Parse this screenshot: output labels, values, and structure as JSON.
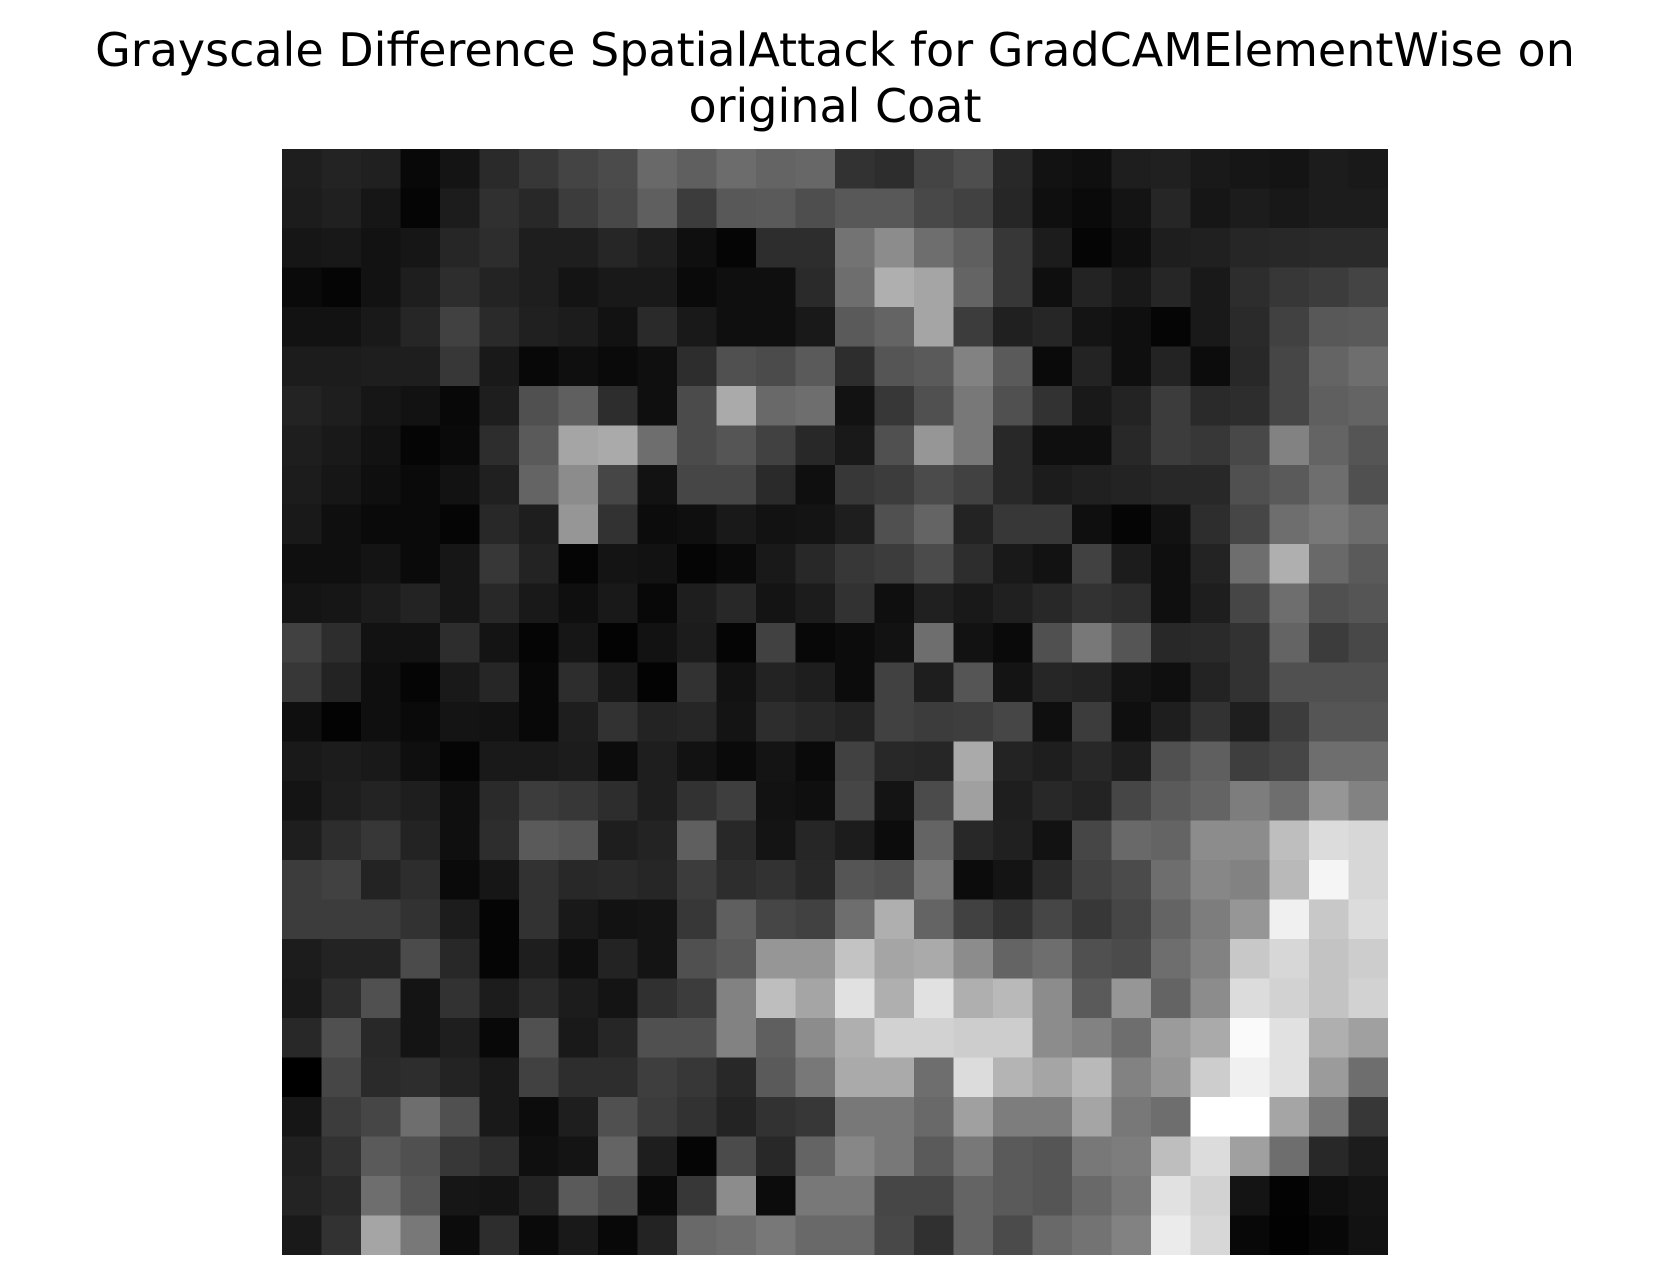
{
  "chart_data": {
    "type": "heatmap",
    "title_lines": [
      "Grayscale Difference SpatialAttack for GradCAMElementWise on",
      "original Coat"
    ],
    "colormap": "gray",
    "vmin": 0,
    "vmax": 255,
    "axes_visible": false,
    "grid": false,
    "rows": 28,
    "cols": 28,
    "values": [
      [
        30,
        35,
        32,
        8,
        20,
        42,
        55,
        68,
        75,
        105,
        95,
        108,
        100,
        103,
        50,
        45,
        68,
        78,
        40,
        18,
        15,
        30,
        32,
        25,
        22,
        20,
        28,
        25
      ],
      [
        28,
        32,
        22,
        5,
        28,
        48,
        40,
        60,
        72,
        95,
        60,
        88,
        90,
        78,
        88,
        88,
        72,
        65,
        38,
        15,
        10,
        20,
        38,
        22,
        28,
        24,
        28,
        28
      ],
      [
        22,
        24,
        18,
        22,
        38,
        45,
        30,
        30,
        38,
        30,
        15,
        5,
        45,
        45,
        115,
        140,
        110,
        95,
        55,
        28,
        5,
        15,
        30,
        32,
        38,
        40,
        42,
        42
      ],
      [
        10,
        5,
        18,
        30,
        45,
        35,
        30,
        20,
        25,
        25,
        10,
        15,
        15,
        42,
        110,
        175,
        165,
        100,
        55,
        15,
        35,
        25,
        38,
        25,
        45,
        55,
        60,
        68
      ],
      [
        18,
        18,
        25,
        38,
        65,
        42,
        32,
        28,
        18,
        42,
        25,
        15,
        15,
        25,
        90,
        100,
        165,
        60,
        32,
        38,
        20,
        15,
        5,
        25,
        42,
        65,
        88,
        90
      ],
      [
        28,
        28,
        30,
        30,
        55,
        25,
        8,
        15,
        10,
        15,
        45,
        80,
        75,
        90,
        45,
        85,
        90,
        130,
        90,
        10,
        35,
        15,
        35,
        12,
        40,
        70,
        100,
        110
      ],
      [
        35,
        30,
        22,
        18,
        8,
        30,
        80,
        95,
        45,
        15,
        75,
        170,
        105,
        110,
        18,
        55,
        80,
        120,
        80,
        50,
        25,
        35,
        60,
        42,
        45,
        70,
        95,
        100
      ],
      [
        30,
        25,
        18,
        5,
        10,
        45,
        90,
        165,
        170,
        110,
        75,
        85,
        65,
        40,
        25,
        80,
        150,
        120,
        40,
        15,
        15,
        40,
        60,
        55,
        72,
        130,
        100,
        85
      ],
      [
        28,
        22,
        15,
        10,
        18,
        32,
        100,
        140,
        70,
        18,
        70,
        70,
        42,
        15,
        55,
        60,
        75,
        65,
        40,
        28,
        32,
        35,
        40,
        40,
        80,
        90,
        110,
        80
      ],
      [
        25,
        15,
        10,
        10,
        5,
        40,
        30,
        150,
        50,
        12,
        15,
        25,
        18,
        20,
        30,
        80,
        100,
        35,
        55,
        55,
        15,
        5,
        18,
        45,
        70,
        110,
        120,
        108
      ],
      [
        15,
        15,
        20,
        10,
        22,
        55,
        35,
        5,
        20,
        18,
        5,
        10,
        25,
        40,
        55,
        60,
        75,
        45,
        25,
        18,
        65,
        28,
        15,
        35,
        110,
        175,
        105,
        90
      ],
      [
        20,
        22,
        28,
        35,
        22,
        40,
        25,
        15,
        25,
        8,
        30,
        40,
        20,
        28,
        50,
        15,
        32,
        25,
        32,
        40,
        50,
        45,
        15,
        30,
        70,
        110,
        80,
        85
      ],
      [
        65,
        45,
        18,
        18,
        45,
        20,
        5,
        22,
        3,
        18,
        28,
        5,
        65,
        8,
        12,
        18,
        110,
        18,
        10,
        80,
        120,
        85,
        40,
        42,
        50,
        100,
        60,
        72
      ],
      [
        55,
        35,
        15,
        5,
        25,
        38,
        8,
        45,
        25,
        3,
        50,
        18,
        35,
        30,
        12,
        65,
        30,
        85,
        20,
        38,
        35,
        20,
        15,
        35,
        50,
        80,
        80,
        80
      ],
      [
        15,
        3,
        15,
        10,
        20,
        18,
        8,
        30,
        50,
        35,
        38,
        20,
        45,
        40,
        35,
        65,
        60,
        62,
        70,
        15,
        60,
        15,
        30,
        50,
        30,
        60,
        85,
        85
      ],
      [
        25,
        28,
        25,
        15,
        5,
        25,
        25,
        28,
        12,
        30,
        18,
        10,
        20,
        10,
        65,
        40,
        38,
        170,
        35,
        30,
        40,
        30,
        80,
        95,
        62,
        70,
        110,
        110
      ],
      [
        20,
        30,
        35,
        30,
        15,
        42,
        60,
        55,
        45,
        30,
        50,
        62,
        18,
        15,
        70,
        20,
        75,
        160,
        30,
        40,
        35,
        70,
        90,
        100,
        125,
        110,
        150,
        130
      ],
      [
        30,
        45,
        55,
        35,
        15,
        45,
        90,
        85,
        30,
        35,
        95,
        40,
        20,
        38,
        28,
        12,
        100,
        40,
        32,
        18,
        70,
        105,
        100,
        140,
        140,
        190,
        220,
        215
      ],
      [
        60,
        65,
        35,
        45,
        10,
        22,
        50,
        40,
        42,
        38,
        60,
        45,
        50,
        40,
        85,
        80,
        120,
        12,
        20,
        42,
        65,
        75,
        110,
        135,
        130,
        185,
        245,
        215
      ],
      [
        60,
        60,
        60,
        50,
        28,
        5,
        50,
        25,
        18,
        20,
        55,
        95,
        70,
        65,
        110,
        175,
        100,
        65,
        50,
        70,
        55,
        70,
        100,
        125,
        150,
        240,
        200,
        220
      ],
      [
        28,
        35,
        35,
        75,
        40,
        5,
        30,
        15,
        35,
        20,
        80,
        90,
        150,
        150,
        195,
        165,
        170,
        140,
        100,
        110,
        80,
        75,
        110,
        130,
        200,
        215,
        195,
        205
      ],
      [
        25,
        45,
        80,
        20,
        50,
        28,
        42,
        28,
        20,
        48,
        60,
        130,
        190,
        165,
        225,
        175,
        225,
        175,
        185,
        140,
        90,
        150,
        100,
        140,
        220,
        210,
        195,
        210
      ],
      [
        40,
        80,
        40,
        20,
        30,
        8,
        80,
        25,
        38,
        80,
        80,
        130,
        95,
        140,
        175,
        210,
        210,
        205,
        205,
        140,
        130,
        110,
        155,
        170,
        250,
        225,
        175,
        160
      ],
      [
        0,
        70,
        42,
        45,
        35,
        25,
        65,
        45,
        45,
        62,
        55,
        40,
        90,
        120,
        170,
        170,
        110,
        220,
        180,
        165,
        185,
        130,
        150,
        205,
        240,
        225,
        155,
        110
      ],
      [
        22,
        60,
        70,
        110,
        80,
        25,
        12,
        30,
        80,
        60,
        50,
        35,
        50,
        55,
        120,
        120,
        105,
        160,
        125,
        125,
        165,
        120,
        110,
        255,
        255,
        165,
        120,
        55
      ],
      [
        32,
        50,
        90,
        80,
        55,
        45,
        15,
        20,
        100,
        30,
        5,
        75,
        40,
        100,
        135,
        120,
        90,
        120,
        90,
        85,
        120,
        125,
        190,
        220,
        160,
        110,
        40,
        28
      ],
      [
        35,
        42,
        110,
        85,
        22,
        20,
        35,
        90,
        75,
        10,
        55,
        140,
        12,
        120,
        120,
        70,
        70,
        100,
        90,
        85,
        105,
        120,
        225,
        210,
        20,
        3,
        15,
        20
      ],
      [
        25,
        50,
        165,
        120,
        12,
        45,
        10,
        25,
        8,
        35,
        105,
        110,
        120,
        105,
        105,
        72,
        48,
        100,
        75,
        105,
        115,
        130,
        235,
        215,
        8,
        2,
        8,
        18
      ]
    ]
  }
}
